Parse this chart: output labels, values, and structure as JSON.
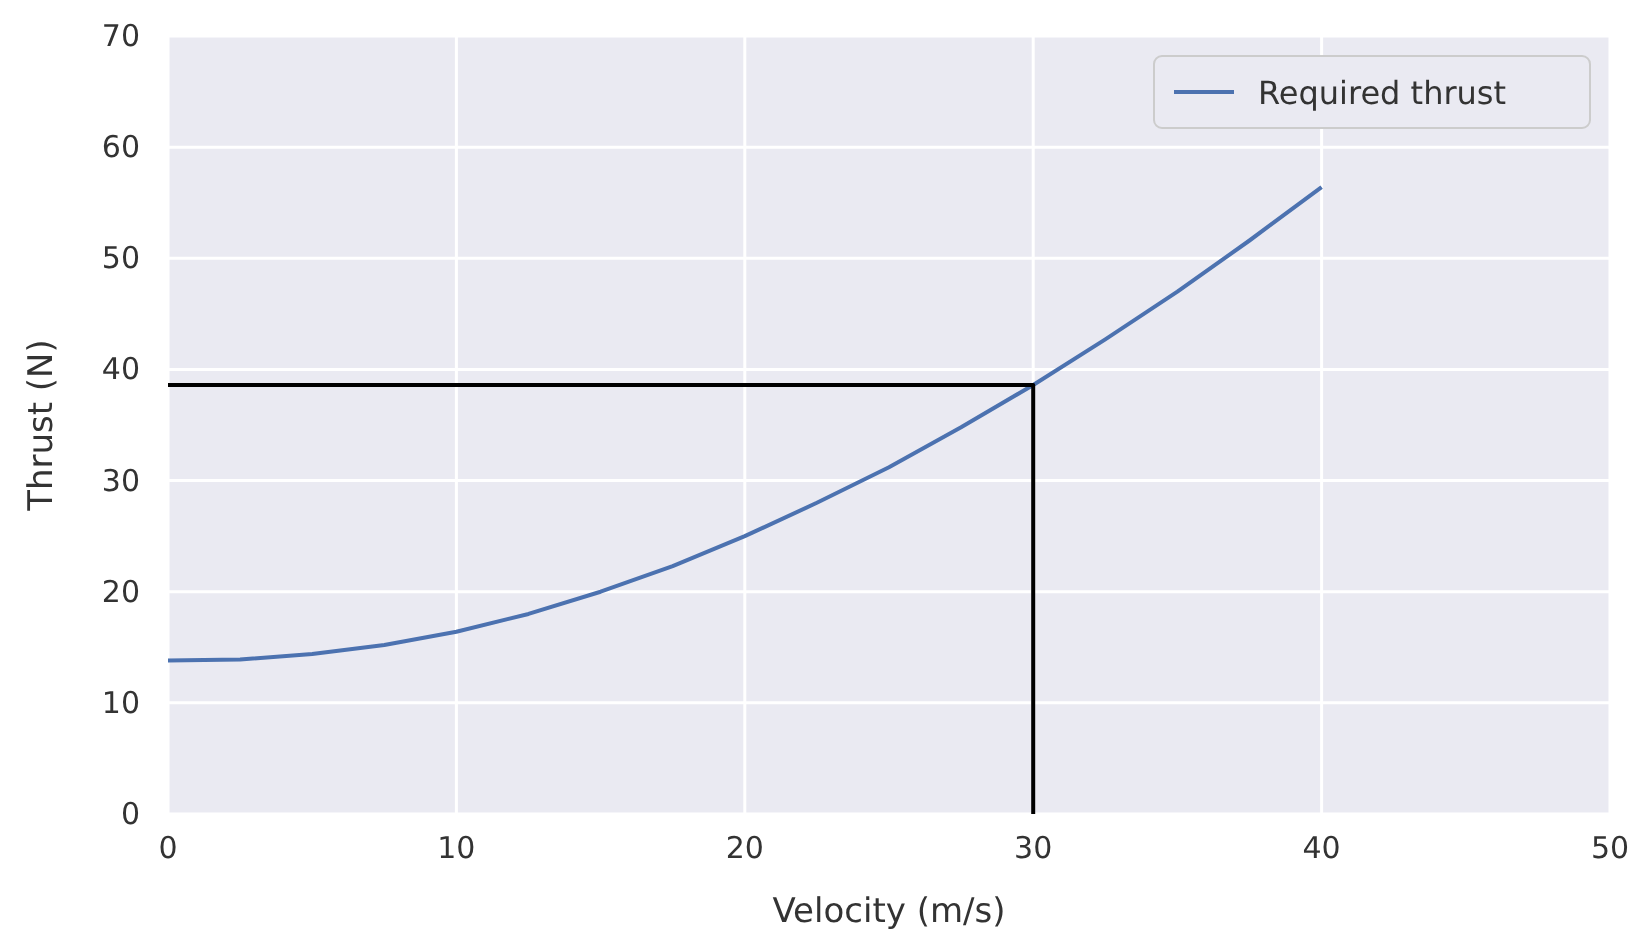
{
  "chart_data": {
    "type": "line",
    "xlabel": "Velocity (m/s)",
    "ylabel": "Thrust (N)",
    "xlim": [
      0,
      50
    ],
    "ylim": [
      0,
      70
    ],
    "xticks": [
      0,
      10,
      20,
      30,
      40,
      50
    ],
    "yticks": [
      0,
      10,
      20,
      30,
      40,
      50,
      60,
      70
    ],
    "grid": true,
    "legend": "top right",
    "series": [
      {
        "name": "Required thrust",
        "color": "#4c72b0",
        "x": [
          0,
          2.5,
          5,
          7.5,
          10,
          12.5,
          15,
          17.5,
          20,
          22.5,
          25,
          27.5,
          30,
          32.5,
          35,
          37.5,
          40
        ],
        "values": [
          13.8,
          13.9,
          14.4,
          15.2,
          16.4,
          18.0,
          20.0,
          22.3,
          25.0,
          28.0,
          31.2,
          34.8,
          38.6,
          42.7,
          47.0,
          51.6,
          56.4
        ]
      },
      {
        "color": "#000000",
        "x": [
          0,
          30,
          30
        ],
        "values": [
          38.6,
          38.6,
          0
        ]
      }
    ]
  }
}
